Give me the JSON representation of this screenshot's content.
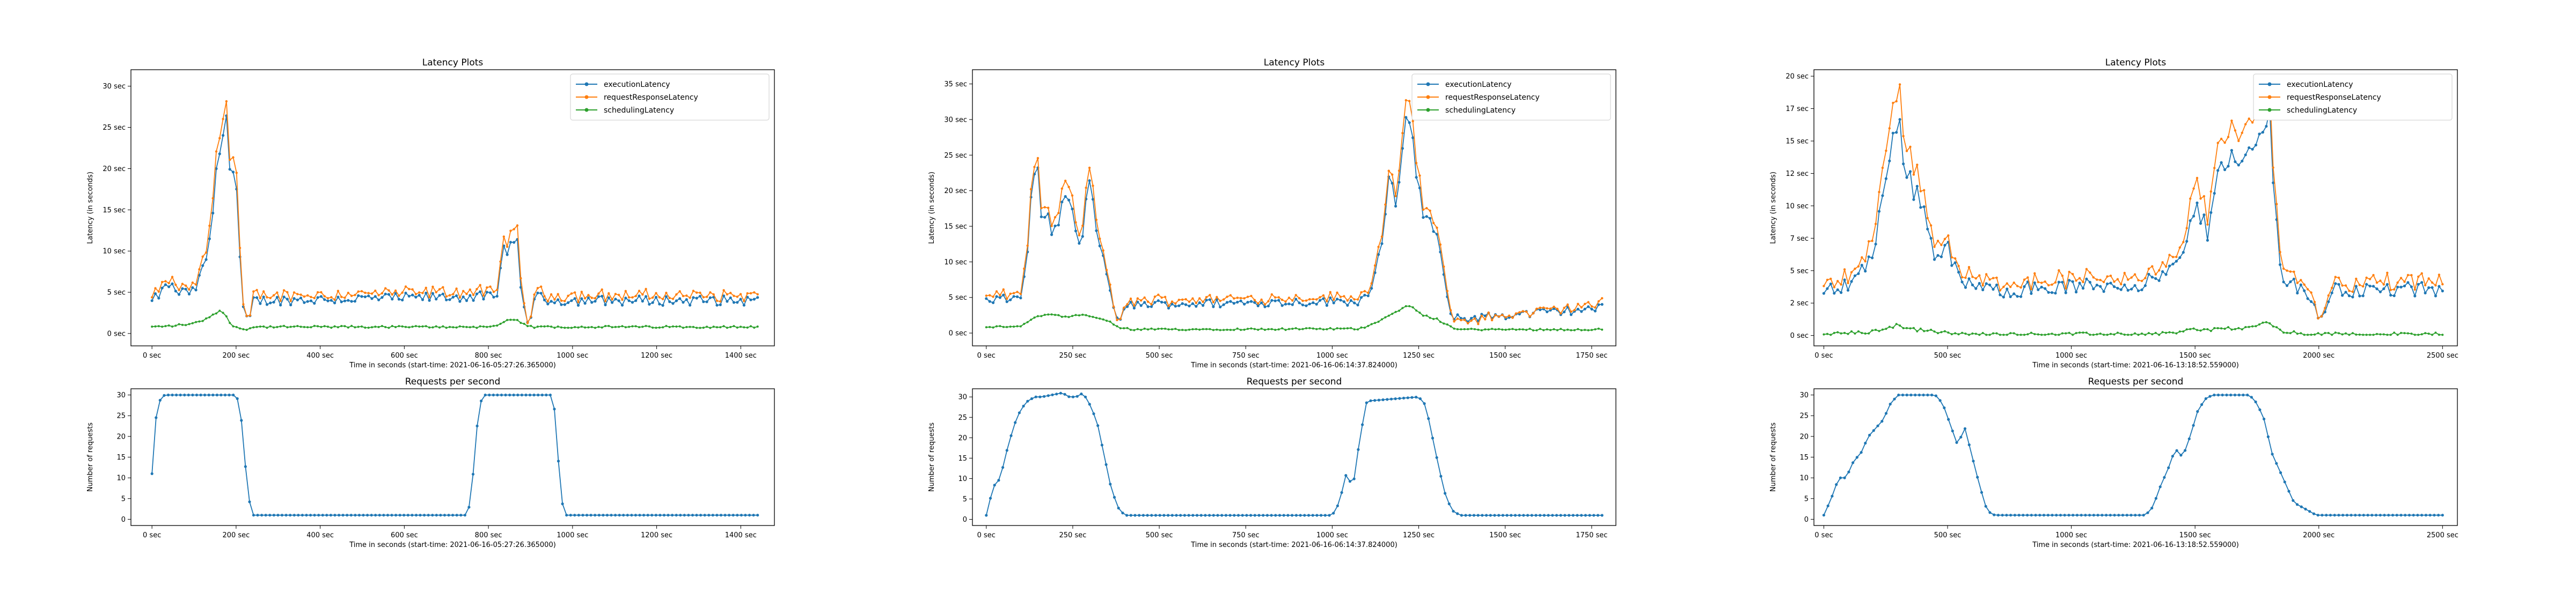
{
  "chart_data": [
    {
      "type": "line",
      "title": "Latency Plots",
      "xlabel": "Time in seconds (start-time: 2021-06-16-05:27:26.365000)",
      "ylabel": "Latency (in seconds)",
      "xlim": [
        -50,
        1480
      ],
      "ylim": [
        -1.5,
        32
      ],
      "xticks": [
        0,
        200,
        400,
        600,
        800,
        1000,
        1200,
        1400
      ],
      "xtick_labels": [
        "0 sec",
        "200 sec",
        "400 sec",
        "600 sec",
        "800 sec",
        "1000 sec",
        "1200 sec",
        "1400 sec"
      ],
      "yticks": [
        0,
        5,
        10,
        15,
        20,
        25,
        30
      ],
      "ytick_labels": [
        "0 sec",
        "5 sec",
        "10 sec",
        "15 sec",
        "20 sec",
        "25 sec",
        "30 sec"
      ],
      "legend": "top-right",
      "grid": false,
      "series": [
        {
          "name": "executionLatency",
          "color": "#1f77b4"
        },
        {
          "name": "requestResponseLatency",
          "color": "#ff7f0e"
        },
        {
          "name": "schedulingLatency",
          "color": "#2ca02c"
        }
      ],
      "x_max": 1440,
      "anchors": {
        "x": [
          0,
          40,
          60,
          100,
          130,
          150,
          165,
          175,
          185,
          200,
          215,
          230,
          240,
          260,
          800,
          820,
          830,
          840,
          870,
          880,
          895,
          910,
          950,
          1440
        ],
        "execution": [
          3.8,
          6,
          5,
          5,
          9,
          17,
          25,
          28.5,
          20,
          18.5,
          3,
          1,
          4,
          4,
          4.5,
          4,
          9,
          10.5,
          10.5,
          4,
          1,
          4.5,
          4,
          4
        ],
        "request": [
          4.2,
          6.5,
          5.5,
          5.5,
          10,
          19,
          27,
          30.5,
          21,
          20.5,
          3.5,
          0.5,
          4.5,
          4.5,
          5,
          4.5,
          10,
          11.5,
          12,
          4.5,
          1,
          5,
          4.5,
          4.5
        ],
        "scheduling": [
          0.8,
          0.9,
          1,
          1.2,
          1.8,
          2.5,
          2.8,
          2.2,
          1.2,
          0.8,
          0.5,
          0.6,
          0.8,
          0.8,
          0.8,
          1,
          1.3,
          1.5,
          1.6,
          1.2,
          0.8,
          0.8,
          0.8,
          0.8
        ]
      }
    },
    {
      "type": "line",
      "title": "Requests per second",
      "xlabel": "Time in seconds (start-time: 2021-06-16-05:27:26.365000)",
      "ylabel": "Number of requests",
      "xlim": [
        -50,
        1480
      ],
      "ylim": [
        -1.5,
        31.5
      ],
      "xticks": [
        0,
        200,
        400,
        600,
        800,
        1000,
        1200,
        1400
      ],
      "xtick_labels": [
        "0 sec",
        "200 sec",
        "400 sec",
        "600 sec",
        "800 sec",
        "1000 sec",
        "1200 sec",
        "1400 sec"
      ],
      "yticks": [
        0,
        5,
        10,
        15,
        20,
        25,
        30
      ],
      "ytick_labels": [
        "0",
        "5",
        "10",
        "15",
        "20",
        "25",
        "30"
      ],
      "legend": "none",
      "grid": false,
      "series": [
        {
          "name": "",
          "color": "#1f77b4"
        }
      ],
      "x": [
        0,
        10,
        20,
        30,
        40,
        200,
        210,
        220,
        230,
        240,
        250,
        750,
        760,
        770,
        780,
        790,
        950,
        960,
        970,
        980,
        990,
        1000,
        1440
      ],
      "y": [
        11,
        25,
        29,
        30,
        30,
        30,
        27,
        15,
        5,
        1,
        1,
        1,
        6,
        20,
        28,
        30,
        30,
        25,
        8,
        1,
        1,
        1,
        1
      ]
    },
    {
      "type": "line",
      "title": "Latency Plots",
      "xlabel": "Time in seconds (start-time: 2021-06-16-06:14:37.824000)",
      "ylabel": "Latency (in seconds)",
      "xlim": [
        -40,
        1820
      ],
      "ylim": [
        -1.8,
        37
      ],
      "xticks": [
        0,
        250,
        500,
        750,
        1000,
        1250,
        1500,
        1750
      ],
      "xtick_labels": [
        "0 sec",
        "250 sec",
        "500 sec",
        "750 sec",
        "1000 sec",
        "1250 sec",
        "1500 sec",
        "1750 sec"
      ],
      "yticks": [
        0,
        5,
        10,
        15,
        20,
        25,
        30,
        35
      ],
      "ytick_labels": [
        "0 sec",
        "5 sec",
        "10 sec",
        "15 sec",
        "20 sec",
        "25 sec",
        "30 sec",
        "35 sec"
      ],
      "legend": "top-right",
      "grid": false,
      "series": [
        {
          "name": "executionLatency",
          "color": "#1f77b4"
        },
        {
          "name": "requestResponseLatency",
          "color": "#ff7f0e"
        },
        {
          "name": "schedulingLatency",
          "color": "#2ca02c"
        }
      ],
      "x_max": 1780,
      "anchors": {
        "x": [
          0,
          100,
          120,
          140,
          160,
          200,
          230,
          270,
          300,
          330,
          360,
          380,
          420,
          1080,
          1110,
          1140,
          1160,
          1190,
          1220,
          1260,
          1300,
          1340,
          1360,
          1780
        ],
        "execution": [
          4.5,
          5,
          12,
          25,
          17,
          14,
          20,
          12,
          21,
          12,
          5,
          2,
          4,
          4.5,
          6,
          12,
          21,
          18,
          32,
          17,
          14,
          3,
          2,
          3.5
        ],
        "request": [
          5,
          5.5,
          13,
          26,
          18,
          15,
          22,
          13,
          23,
          13,
          5.5,
          1.5,
          4.5,
          5,
          6.5,
          13,
          22,
          19,
          35,
          18,
          15,
          3.5,
          1.5,
          4
        ],
        "scheduling": [
          0.8,
          1,
          1.5,
          2.2,
          2.4,
          2.6,
          2.2,
          2.5,
          2.4,
          2,
          1.5,
          0.8,
          0.5,
          0.6,
          1.2,
          1.8,
          2.5,
          3,
          4,
          2.5,
          2,
          1,
          0.5,
          0.5
        ]
      }
    },
    {
      "type": "line",
      "title": "Requests per second",
      "xlabel": "Time in seconds (start-time: 2021-06-16-06:14:37.824000)",
      "ylabel": "Number of requests",
      "xlim": [
        -40,
        1820
      ],
      "ylim": [
        -1.5,
        32
      ],
      "xticks": [
        0,
        250,
        500,
        750,
        1000,
        1250,
        1500,
        1750
      ],
      "xtick_labels": [
        "0 sec",
        "250 sec",
        "500 sec",
        "750 sec",
        "1000 sec",
        "1250 sec",
        "1500 sec",
        "1750 sec"
      ],
      "yticks": [
        0,
        5,
        10,
        15,
        20,
        25,
        30
      ],
      "ytick_labels": [
        "0",
        "5",
        "10",
        "15",
        "20",
        "25",
        "30"
      ],
      "legend": "none",
      "grid": false,
      "series": [
        {
          "name": "",
          "color": "#1f77b4"
        }
      ],
      "x": [
        0,
        20,
        40,
        60,
        80,
        100,
        120,
        140,
        160,
        220,
        240,
        260,
        280,
        300,
        320,
        340,
        360,
        380,
        400,
        1000,
        1020,
        1040,
        1060,
        1080,
        1100,
        1250,
        1270,
        1290,
        1310,
        1330,
        1350,
        1370,
        1780
      ],
      "y": [
        1,
        8,
        10,
        17,
        23,
        27,
        29,
        30,
        30,
        31,
        30,
        30,
        31,
        28,
        24,
        16,
        8,
        3,
        1,
        1,
        4,
        11,
        8,
        20,
        29,
        30,
        28,
        20,
        12,
        5,
        2,
        1,
        1
      ]
    },
    {
      "type": "line",
      "title": "Latency Plots",
      "xlabel": "Time in seconds (start-time: 2021-06-16-13:18:52.559000)",
      "ylabel": "Latency (in seconds)",
      "xlim": [
        -40,
        2560
      ],
      "ylim": [
        -0.8,
        20.5
      ],
      "xticks": [
        0,
        500,
        1000,
        1500,
        2000,
        2500
      ],
      "xtick_labels": [
        "0 sec",
        "500 sec",
        "1000 sec",
        "1500 sec",
        "2000 sec",
        "2500 sec"
      ],
      "yticks": [
        0,
        2.5,
        5,
        7.5,
        10,
        12.5,
        15,
        17.5,
        20
      ],
      "ytick_labels": [
        "0 sec",
        "2 sec",
        "5 sec",
        "7 sec",
        "10 sec",
        "12 sec",
        "15 sec",
        "17 sec",
        "20 sec"
      ],
      "legend": "top-right",
      "grid": false,
      "series": [
        {
          "name": "executionLatency",
          "color": "#1f77b4"
        },
        {
          "name": "requestResponseLatency",
          "color": "#ff7f0e"
        },
        {
          "name": "schedulingLatency",
          "color": "#2ca02c"
        }
      ],
      "x_max": 2500,
      "anchors": {
        "x": [
          0,
          100,
          150,
          200,
          250,
          300,
          350,
          400,
          450,
          500,
          550,
          600,
          650,
          700,
          1300,
          1400,
          1450,
          1500,
          1550,
          1600,
          1700,
          1750,
          1800,
          1850,
          1900,
          1950,
          2000,
          2050,
          2500
        ],
        "execution": [
          3.5,
          4,
          5,
          6,
          13,
          16,
          12,
          10,
          6,
          7,
          4,
          4,
          3.5,
          3.5,
          4,
          5,
          6,
          10,
          8,
          14,
          13,
          15,
          17,
          4,
          4,
          3.5,
          1,
          3.5,
          3.5
        ],
        "request": [
          3.8,
          4.5,
          5.5,
          7,
          15,
          18.5,
          14,
          11,
          7,
          7.5,
          4.5,
          4.5,
          4,
          4,
          4.5,
          5.5,
          6.5,
          12,
          9,
          16,
          15,
          17,
          18.5,
          5,
          4.5,
          4,
          1,
          4,
          4
        ],
        "scheduling": [
          0.1,
          0.2,
          0.2,
          0.3,
          0.6,
          0.8,
          0.5,
          0.4,
          0.3,
          0.2,
          0.1,
          0.1,
          0.1,
          0.1,
          0.1,
          0.2,
          0.3,
          0.5,
          0.4,
          0.6,
          0.5,
          0.8,
          1,
          0.3,
          0.2,
          0.1,
          0.1,
          0.1,
          0.1
        ]
      }
    },
    {
      "type": "line",
      "title": "Requests per second",
      "xlabel": "Time in seconds (start-time: 2021-06-16-13:18:52.559000)",
      "ylabel": "Number of requests",
      "xlim": [
        -40,
        2560
      ],
      "ylim": [
        -1.5,
        31.5
      ],
      "xticks": [
        0,
        500,
        1000,
        1500,
        2000,
        2500
      ],
      "xtick_labels": [
        "0 sec",
        "500 sec",
        "1000 sec",
        "1500 sec",
        "2000 sec",
        "2500 sec"
      ],
      "yticks": [
        0,
        5,
        10,
        15,
        20,
        25,
        30
      ],
      "ytick_labels": [
        "0",
        "5",
        "10",
        "15",
        "20",
        "25",
        "30"
      ],
      "legend": "none",
      "grid": false,
      "series": [
        {
          "name": "",
          "color": "#1f77b4"
        }
      ],
      "x": [
        0,
        30,
        60,
        90,
        120,
        150,
        180,
        210,
        240,
        270,
        300,
        450,
        480,
        510,
        540,
        570,
        600,
        630,
        660,
        690,
        720,
        1300,
        1330,
        1360,
        1390,
        1420,
        1450,
        1480,
        1510,
        1540,
        1570,
        1720,
        1750,
        1780,
        1810,
        1840,
        1870,
        1900,
        1930,
        1960,
        1990,
        2020,
        2500
      ],
      "y": [
        1,
        5,
        10,
        10,
        14,
        16,
        20,
        22,
        24,
        28,
        30,
        30,
        28,
        23,
        18,
        22,
        15,
        8,
        2,
        1,
        1,
        1,
        3,
        8,
        12,
        17,
        15,
        20,
        26,
        29,
        30,
        30,
        28,
        24,
        16,
        12,
        8,
        4,
        3,
        2,
        1,
        1,
        1
      ]
    }
  ]
}
